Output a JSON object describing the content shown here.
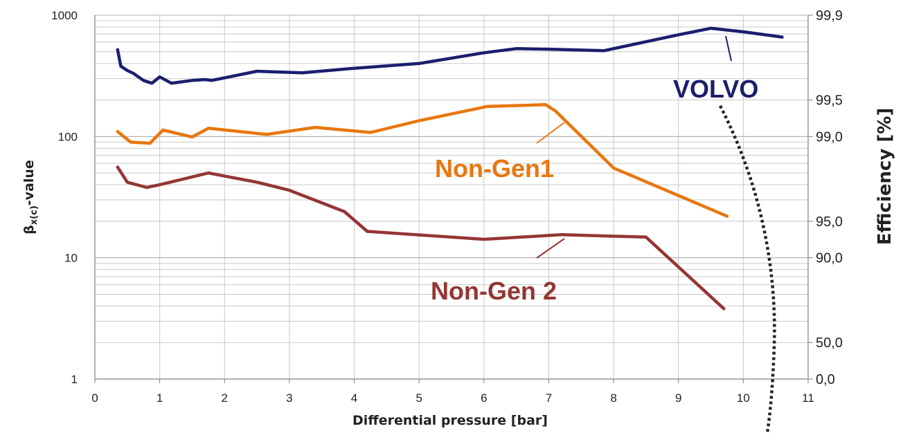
{
  "chart_data": {
    "type": "line",
    "title": "",
    "xlabel": "Differential pressure [bar]",
    "ylabel": "β",
    "ylabel_sub": "x(c)",
    "ylabel_suffix": "-value",
    "y2label": "Efficiency [%]",
    "xlim": [
      0,
      11
    ],
    "ylim": [
      1,
      1000
    ],
    "yscale": "log",
    "grid": true,
    "x_ticks": [
      "0",
      "1",
      "2",
      "3",
      "4",
      "5",
      "6",
      "7",
      "8",
      "9",
      "10",
      "11"
    ],
    "y_ticks": [
      "1",
      "10",
      "100",
      "1000"
    ],
    "y2_ticks": [
      "99,9",
      "99,5",
      "99,0",
      "95,0",
      "90,0",
      "50,0",
      "0,0"
    ],
    "colors": {
      "VOLVO": "#1a1f6e",
      "Non-Gen1": "#e8770e",
      "Non-Gen 2": "#943634",
      "grid": "#c8c8c8",
      "axis": "#808080",
      "curve": "#222222"
    },
    "series": [
      {
        "name": "VOLVO",
        "x": [
          0.35,
          0.4,
          0.5,
          0.6,
          0.75,
          0.88,
          1.0,
          1.05,
          1.18,
          1.5,
          1.7,
          1.8,
          2.5,
          3.2,
          4.0,
          5.0,
          6.0,
          6.5,
          7.0,
          7.85,
          9.0,
          9.5,
          10.0,
          10.6
        ],
        "values": [
          520,
          380,
          350,
          330,
          290,
          275,
          310,
          300,
          275,
          290,
          295,
          290,
          345,
          335,
          365,
          400,
          490,
          530,
          525,
          510,
          690,
          780,
          730,
          660
        ]
      },
      {
        "name": "Non-Gen1",
        "x": [
          0.35,
          0.55,
          0.85,
          1.05,
          1.5,
          1.75,
          2.65,
          3.4,
          4.25,
          5.0,
          6.05,
          6.95,
          7.1,
          8.0,
          9.75
        ],
        "values": [
          110,
          90,
          88,
          113,
          99,
          117,
          104,
          119,
          108,
          135,
          177,
          183,
          163,
          55,
          22
        ]
      },
      {
        "name": "Non-Gen 2",
        "x": [
          0.35,
          0.5,
          0.8,
          1.0,
          1.75,
          2.5,
          3.0,
          3.85,
          4.2,
          6.0,
          7.2,
          8.5,
          9.7
        ],
        "values": [
          56,
          42,
          38,
          40,
          50,
          42,
          36,
          24,
          16.5,
          14.2,
          15.5,
          14.8,
          3.8
        ]
      }
    ]
  }
}
